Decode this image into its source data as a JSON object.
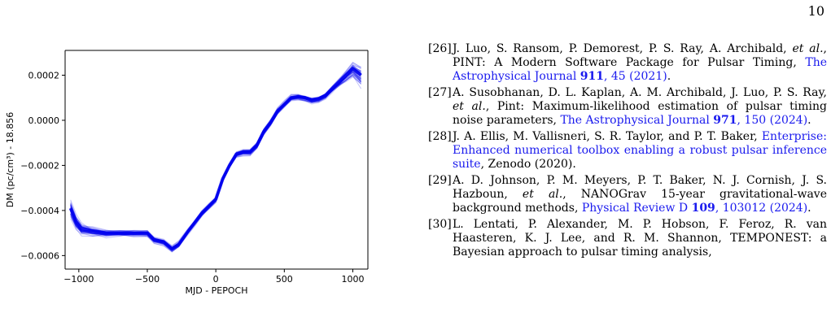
{
  "page": {
    "number": "10"
  },
  "figure": {
    "chart_data": {
      "type": "line",
      "title": "",
      "xlabel": "MJD - PEPOCH",
      "ylabel": "DM (pc/cm³) - 18.856",
      "xlim": [
        -1100,
        1110
      ],
      "ylim": [
        -0.00066,
        0.00031
      ],
      "xticks": [
        -1000,
        -500,
        0,
        500,
        1000
      ],
      "xtick_labels": [
        "−1000",
        "−500",
        "0",
        "500",
        "1000"
      ],
      "yticks": [
        0.0002,
        0.0,
        -0.0002,
        -0.0004,
        -0.0006
      ],
      "ytick_labels": [
        "0.0002",
        "0.0000",
        "−0.0002",
        "−0.0004",
        "−0.0006"
      ],
      "grid": false,
      "series": [
        {
          "color": "#0000ee",
          "x": [
            -1060,
            -1020,
            -980,
            -900,
            -800,
            -700,
            -600,
            -500,
            -450,
            -380,
            -320,
            -270,
            -200,
            -150,
            -100,
            -50,
            0,
            50,
            100,
            150,
            200,
            250,
            300,
            350,
            400,
            450,
            500,
            550,
            600,
            650,
            700,
            750,
            800,
            850,
            900,
            950,
            1000,
            1060
          ],
          "y": [
            -0.00039,
            -0.00045,
            -0.00048,
            -0.00049,
            -0.0005,
            -0.0005,
            -0.0005,
            -0.0005,
            -0.00053,
            -0.00054,
            -0.00057,
            -0.00055,
            -0.00049,
            -0.00045,
            -0.00041,
            -0.00038,
            -0.00035,
            -0.00026,
            -0.0002,
            -0.00015,
            -0.00014,
            -0.00014,
            -0.00011,
            -5e-05,
            -1e-05,
            4e-05,
            7e-05,
            0.0001,
            0.000105,
            0.0001,
            9e-05,
            9.5e-05,
            0.00011,
            0.00014,
            0.00017,
            0.0002,
            0.00023,
            0.0002
          ]
        }
      ]
    }
  },
  "references": [
    {
      "num": "[26]",
      "segments": [
        {
          "text": "J. Luo, S. Ransom, P. Demorest, P. S. Ray, A. Archibald, ",
          "style": "plain"
        },
        {
          "text": "et al.",
          "style": "italic"
        },
        {
          "text": ", PINT: A Modern Software Package for Pulsar Timing, ",
          "style": "plain"
        },
        {
          "text": "The Astrophysical Journal ",
          "style": "link"
        },
        {
          "text": "911",
          "style": "link-bold"
        },
        {
          "text": ", 45 (2021)",
          "style": "link"
        },
        {
          "text": ".",
          "style": "plain"
        }
      ]
    },
    {
      "num": "[27]",
      "segments": [
        {
          "text": "A. Susobhanan, D. L. Kaplan, A. M. Archibald, J. Luo, P. S. Ray, ",
          "style": "plain"
        },
        {
          "text": "et al.",
          "style": "italic"
        },
        {
          "text": ", Pint: Maximum-likelihood estimation of pulsar timing noise parameters, ",
          "style": "plain"
        },
        {
          "text": "The Astrophysical Journal ",
          "style": "link"
        },
        {
          "text": "971",
          "style": "link-bold"
        },
        {
          "text": ", 150 (2024)",
          "style": "link"
        },
        {
          "text": ".",
          "style": "plain"
        }
      ]
    },
    {
      "num": "[28]",
      "segments": [
        {
          "text": "J. A. Ellis, M. Vallisneri, S. R. Taylor, and P. T. Baker, ",
          "style": "plain"
        },
        {
          "text": "Enterprise: Enhanced numerical toolbox enabling a robust pulsar inference suite",
          "style": "link"
        },
        {
          "text": ", Zenodo (2020).",
          "style": "plain"
        }
      ]
    },
    {
      "num": "[29]",
      "segments": [
        {
          "text": "A. D. Johnson, P. M. Meyers, P. T. Baker, N. J. Cornish, J. S. Hazboun, ",
          "style": "plain"
        },
        {
          "text": "et al.",
          "style": "italic"
        },
        {
          "text": ", NANOGrav 15-year gravitational-wave background methods, ",
          "style": "plain"
        },
        {
          "text": "Physical Review D ",
          "style": "link"
        },
        {
          "text": "109",
          "style": "link-bold"
        },
        {
          "text": ", 103012 (2024)",
          "style": "link"
        },
        {
          "text": ".",
          "style": "plain"
        }
      ]
    },
    {
      "num": "[30]",
      "segments": [
        {
          "text": "L. Lentati, P. Alexander, M. P. Hobson, F. Feroz, R. van Haasteren, K. J. Lee, and R. M. Shannon, TEMPONEST: a Bayesian approach to pulsar timing analysis,",
          "style": "plain"
        }
      ]
    }
  ]
}
